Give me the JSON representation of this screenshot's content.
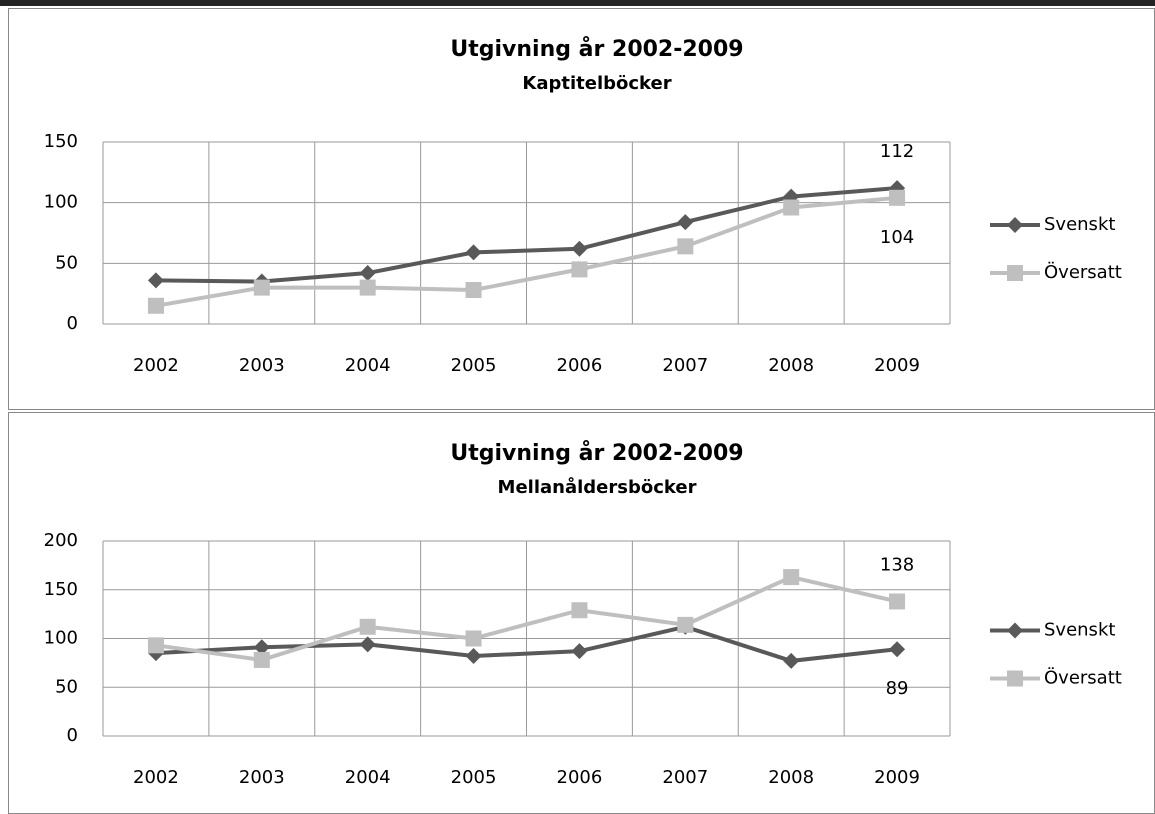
{
  "chart_data": [
    {
      "type": "line",
      "title": "Utgivning  år 2002-2009",
      "subtitle": "Kaptitelböcker",
      "categories": [
        "2002",
        "2003",
        "2004",
        "2005",
        "2006",
        "2007",
        "2008",
        "2009"
      ],
      "series": [
        {
          "name": "Svenskt",
          "color": "#595959",
          "marker": "diamond",
          "values": [
            36,
            35,
            42,
            59,
            62,
            84,
            105,
            112
          ]
        },
        {
          "name": "Översatt",
          "color": "#bfbfbf",
          "marker": "square",
          "values": [
            15,
            30,
            30,
            28,
            45,
            64,
            96,
            104
          ]
        }
      ],
      "ylim": [
        0,
        150
      ],
      "yticks": [
        0,
        50,
        100,
        150
      ],
      "grid": true,
      "legend": "right",
      "data_labels": "last"
    },
    {
      "type": "line",
      "title": "Utgivning år 2002-2009",
      "subtitle": "Mellanåldersböcker",
      "categories": [
        "2002",
        "2003",
        "2004",
        "2005",
        "2006",
        "2007",
        "2008",
        "2009"
      ],
      "series": [
        {
          "name": "Svenskt",
          "color": "#595959",
          "marker": "diamond",
          "values": [
            85,
            91,
            94,
            82,
            87,
            112,
            77,
            89
          ]
        },
        {
          "name": "Översatt",
          "color": "#bfbfbf",
          "marker": "square",
          "values": [
            93,
            78,
            112,
            100,
            129,
            114,
            163,
            138
          ]
        }
      ],
      "ylim": [
        0,
        200
      ],
      "yticks": [
        0,
        50,
        100,
        150,
        200
      ],
      "grid": true,
      "legend": "right",
      "data_labels": "last"
    }
  ]
}
